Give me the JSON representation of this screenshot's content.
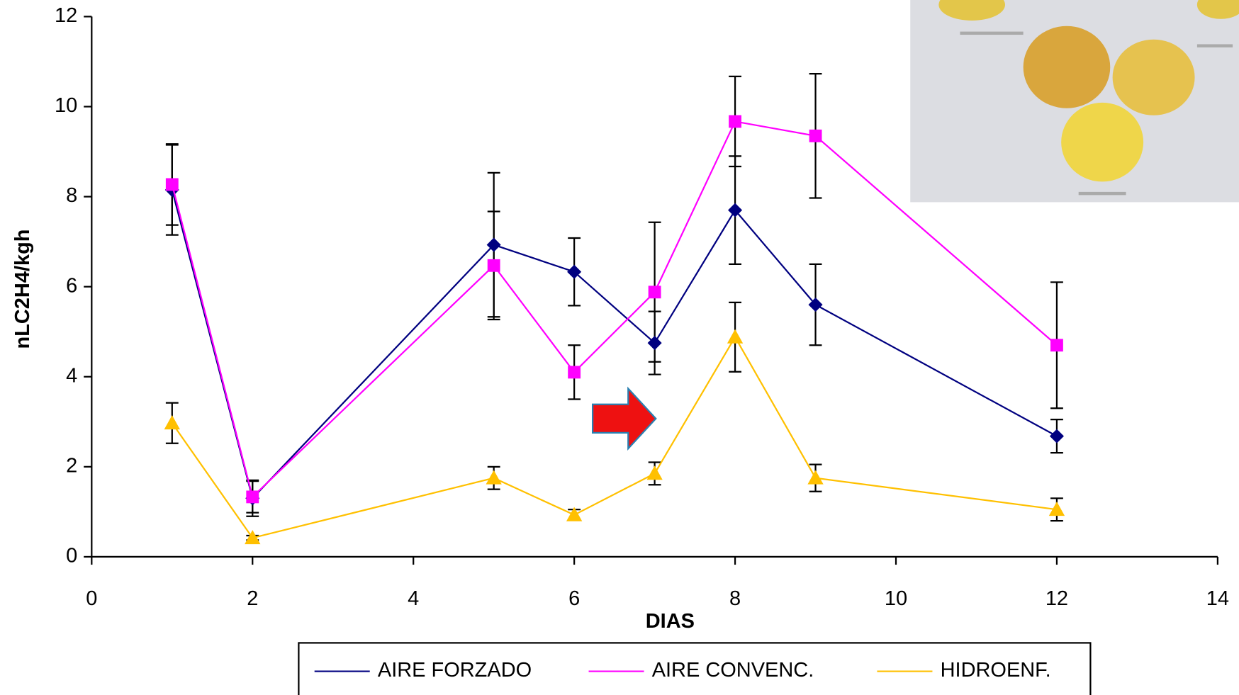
{
  "chart_data": {
    "type": "line",
    "x_label": "DIAS",
    "y_label": "nLC2H4/kgh",
    "x": [
      1,
      2,
      5,
      6,
      7,
      8,
      9,
      12
    ],
    "series": [
      {
        "name": "AIRE FORZADO",
        "color": "#000080",
        "marker": "diamond",
        "values": [
          8.15,
          1.3,
          6.93,
          6.33,
          4.75,
          7.7,
          5.6,
          2.68
        ],
        "errors": [
          1.0,
          0.4,
          1.6,
          0.75,
          0.7,
          1.2,
          0.9,
          0.37
        ]
      },
      {
        "name": "AIRE CONVENC.",
        "color": "#ff00ff",
        "marker": "square",
        "values": [
          8.27,
          1.33,
          6.47,
          4.1,
          5.88,
          9.67,
          9.35,
          4.7
        ],
        "errors": [
          0.9,
          0.35,
          1.2,
          0.6,
          1.55,
          1.0,
          1.38,
          1.4
        ]
      },
      {
        "name": "HIDROENF.",
        "color": "#ffc000",
        "marker": "triangle",
        "values": [
          2.97,
          0.42,
          1.75,
          0.93,
          1.85,
          4.88,
          1.75,
          1.05
        ],
        "errors": [
          0.45,
          0.05,
          0.25,
          0.12,
          0.25,
          0.77,
          0.3,
          0.25
        ]
      }
    ],
    "xlim": [
      0,
      14
    ],
    "xticks": [
      0,
      2,
      4,
      6,
      8,
      10,
      12,
      14
    ],
    "ylim": [
      0,
      12
    ],
    "yticks": [
      0,
      2,
      4,
      6,
      8,
      10,
      12
    ],
    "legend": "bottom"
  }
}
